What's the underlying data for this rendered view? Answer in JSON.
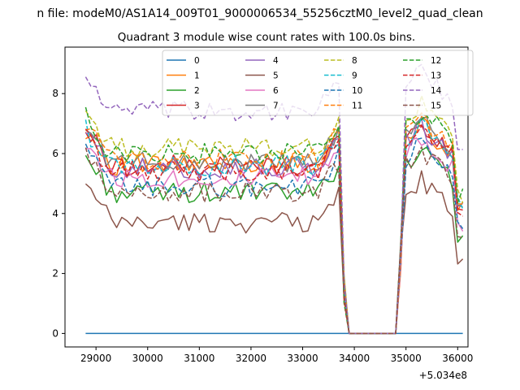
{
  "chart_data": {
    "type": "line",
    "suptitle": "n file: modeM0/AS1A14_009T01_9000006534_55256cztM0_level2_quad_clean",
    "title": "Quadrant 3 module wise count rates with 100.0s bins.",
    "xlabel": "",
    "ylabel": "",
    "x_offset_label": "+5.034e8",
    "xlim": [
      28400,
      36200
    ],
    "ylim": [
      -0.45,
      9.55
    ],
    "xticks": [
      29000,
      30000,
      31000,
      32000,
      33000,
      34000,
      35000,
      36000
    ],
    "xtick_labels": [
      "29000",
      "30000",
      "31000",
      "32000",
      "33000",
      "34000",
      "35000",
      "36000"
    ],
    "yticks": [
      0,
      2,
      4,
      6,
      8
    ],
    "ytick_labels": [
      "0",
      "2",
      "4",
      "6",
      "8"
    ],
    "x_start": 28800,
    "x_step": 100,
    "n_points": 74,
    "legend": {
      "placement": "upper-center",
      "ncol": 4
    },
    "series": [
      {
        "name": "0",
        "color": "#1f77b4",
        "dash": "solid",
        "base": 0.0
      },
      {
        "name": "1",
        "color": "#ff7f0e",
        "dash": "solid",
        "base": 5.6
      },
      {
        "name": "2",
        "color": "#2ca02c",
        "dash": "solid",
        "base": 4.7
      },
      {
        "name": "3",
        "color": "#d62728",
        "dash": "solid",
        "base": 5.6
      },
      {
        "name": "4",
        "color": "#9467bd",
        "dash": "solid",
        "base": 5.5
      },
      {
        "name": "5",
        "color": "#8c564b",
        "dash": "solid",
        "base": 3.7
      },
      {
        "name": "6",
        "color": "#e377c2",
        "dash": "solid",
        "base": 5.2
      },
      {
        "name": "7",
        "color": "#7f7f7f",
        "dash": "solid",
        "base": 5.7
      },
      {
        "name": "8",
        "color": "#bcbd22",
        "dash": "dashed",
        "base": 6.2
      },
      {
        "name": "9",
        "color": "#17becf",
        "dash": "dashed",
        "base": 5.6
      },
      {
        "name": "10",
        "color": "#1f77b4",
        "dash": "dashed",
        "base": 4.9
      },
      {
        "name": "11",
        "color": "#ff7f0e",
        "dash": "dashed",
        "base": 5.8
      },
      {
        "name": "12",
        "color": "#2ca02c",
        "dash": "dashed",
        "base": 6.0
      },
      {
        "name": "13",
        "color": "#d62728",
        "dash": "dashed",
        "base": 5.4
      },
      {
        "name": "14",
        "color": "#9467bd",
        "dash": "dashed",
        "base": 7.4
      },
      {
        "name": "15",
        "color": "#8c564b",
        "dash": "dashed",
        "base": 4.7
      }
    ],
    "profile": {
      "early_boost_until": 29300,
      "early_boost": 1.2,
      "gap_start": 33800,
      "gap_zero_from": 33900,
      "gap_zero_to": 34800,
      "recover_peak_x": 35300,
      "late_peak_boost": 1.4,
      "end_x": 36100
    }
  }
}
